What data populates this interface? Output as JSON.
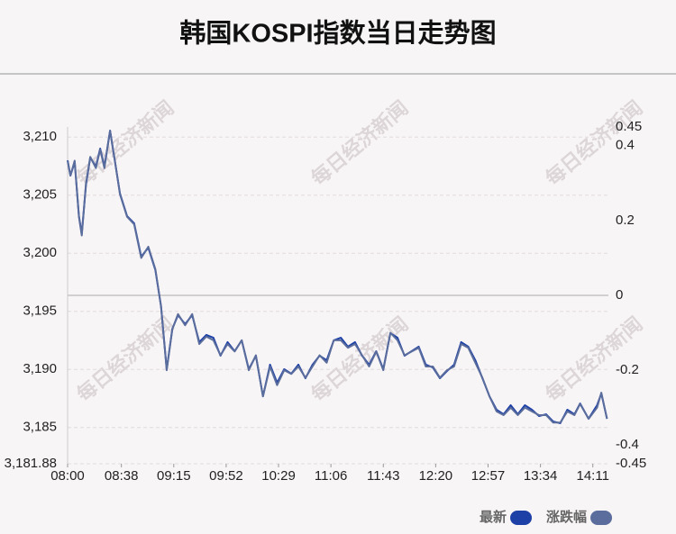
{
  "chart_data": {
    "type": "line",
    "title": "韩国KOSPI指数当日走势图",
    "watermark": "每日经济新闻",
    "x": [
      "08:00",
      "08:02",
      "08:05",
      "08:08",
      "08:10",
      "08:13",
      "08:16",
      "08:20",
      "08:23",
      "08:26",
      "08:30",
      "08:33",
      "08:37",
      "08:42",
      "08:47",
      "08:52",
      "08:57",
      "09:02",
      "09:06",
      "09:10",
      "09:14",
      "09:18",
      "09:23",
      "09:28",
      "09:33",
      "09:38",
      "09:43",
      "09:48",
      "09:53",
      "09:58",
      "10:03",
      "10:08",
      "10:13",
      "10:18",
      "10:23",
      "10:28",
      "10:33",
      "10:38",
      "10:43",
      "10:48",
      "10:53",
      "10:58",
      "11:03",
      "11:08",
      "11:13",
      "11:18",
      "11:23",
      "11:28",
      "11:33",
      "11:38",
      "11:43",
      "11:48",
      "11:53",
      "11:58",
      "12:03",
      "12:08",
      "12:13",
      "12:18",
      "12:23",
      "12:28",
      "12:33",
      "12:38",
      "12:43",
      "12:48",
      "12:53",
      "12:58",
      "13:03",
      "13:08",
      "13:13",
      "13:18",
      "13:23",
      "13:28",
      "13:33",
      "13:38",
      "13:43",
      "13:48",
      "13:53",
      "13:58",
      "14:02",
      "14:08",
      "14:14",
      "14:17",
      "14:21"
    ],
    "xlim": [
      "08:00",
      "14:22"
    ],
    "xticks": [
      "08:00",
      "08:38",
      "09:15",
      "09:52",
      "10:29",
      "11:06",
      "11:43",
      "12:20",
      "12:57",
      "13:34",
      "14:11"
    ],
    "series": [
      {
        "name": "最新",
        "color": "#1d40a6",
        "values": [
          3208.0,
          3206.69,
          3207.85,
          3203.2,
          3201.65,
          3205.91,
          3208.24,
          3207.46,
          3209.01,
          3207.46,
          3210.56,
          3208.24,
          3205.14,
          3203.2,
          3202.58,
          3199.71,
          3200.48,
          3198.55,
          3195.45,
          3190.02,
          3193.51,
          3194.67,
          3193.9,
          3194.67,
          3192.35,
          3192.97,
          3192.73,
          3191.18,
          3192.35,
          3191.57,
          3192.5,
          3190.02,
          3191.18,
          3187.69,
          3190.41,
          3188.86,
          3190.02,
          3189.63,
          3190.41,
          3189.24,
          3190.41,
          3191.18,
          3190.79,
          3192.5,
          3192.73,
          3191.96,
          3192.35,
          3191.18,
          3190.41,
          3191.57,
          3190.02,
          3193.12,
          3192.73,
          3191.18,
          3191.57,
          3191.96,
          3190.41,
          3190.17,
          3189.24,
          3189.86,
          3190.41,
          3192.35,
          3191.96,
          3190.79,
          3189.24,
          3187.69,
          3186.53,
          3186.14,
          3186.92,
          3186.14,
          3186.92,
          3186.53,
          3185.99,
          3186.14,
          3185.52,
          3185.37,
          3186.53,
          3186.14,
          3187.07,
          3185.76,
          3186.92,
          3187.93,
          3185.76
        ]
      },
      {
        "name": "涨跌幅",
        "color": "#5a6d9c",
        "axis": "y2",
        "values": [
          0.36,
          0.32,
          0.36,
          0.21,
          0.16,
          0.3,
          0.37,
          0.34,
          0.39,
          0.34,
          0.44,
          0.37,
          0.27,
          0.21,
          0.19,
          0.1,
          0.13,
          0.07,
          -0.03,
          -0.2,
          -0.09,
          -0.05,
          -0.08,
          -0.05,
          -0.13,
          -0.11,
          -0.12,
          -0.16,
          -0.13,
          -0.15,
          -0.12,
          -0.2,
          -0.16,
          -0.27,
          -0.19,
          -0.24,
          -0.2,
          -0.21,
          -0.19,
          -0.22,
          -0.19,
          -0.16,
          -0.18,
          -0.12,
          -0.12,
          -0.14,
          -0.13,
          -0.16,
          -0.19,
          -0.15,
          -0.2,
          -0.1,
          -0.12,
          -0.16,
          -0.15,
          -0.14,
          -0.19,
          -0.19,
          -0.22,
          -0.2,
          -0.19,
          -0.13,
          -0.14,
          -0.18,
          -0.22,
          -0.27,
          -0.31,
          -0.32,
          -0.3,
          -0.32,
          -0.3,
          -0.31,
          -0.32,
          -0.32,
          -0.34,
          -0.34,
          -0.31,
          -0.32,
          -0.29,
          -0.33,
          -0.3,
          -0.26,
          -0.33
        ]
      }
    ],
    "ylim": [
      3181.88,
      3210.87
    ],
    "yticks": [
      {
        "value": 3181.88,
        "label": "3,181.88"
      },
      {
        "value": 3185,
        "label": "3,185"
      },
      {
        "value": 3190,
        "label": "3,190"
      },
      {
        "value": 3195,
        "label": "3,195"
      },
      {
        "value": 3200,
        "label": "3,200"
      },
      {
        "value": 3205,
        "label": "3,205"
      },
      {
        "value": 3210,
        "label": "3,210"
      }
    ],
    "y2lim": [
      -0.45,
      0.45
    ],
    "y2ticks": [
      -0.45,
      -0.4,
      -0.2,
      0,
      0.2,
      0.4,
      0.45
    ],
    "grid": true,
    "legend": "bottom-right"
  }
}
